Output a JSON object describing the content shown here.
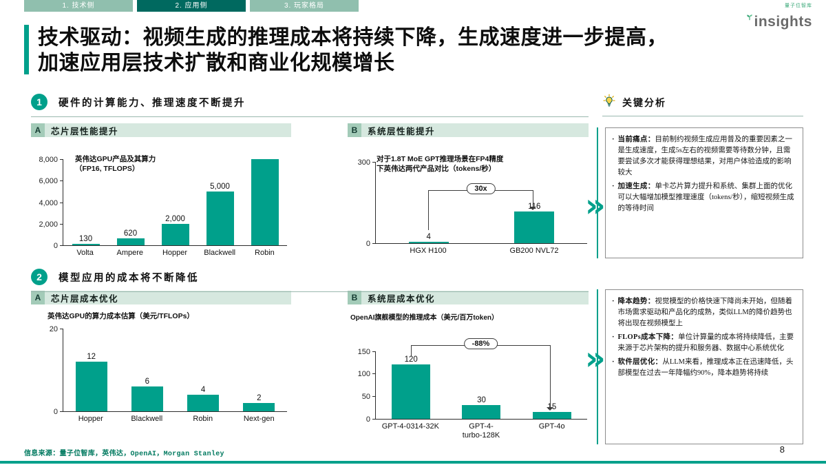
{
  "colors": {
    "accent": "#00a08b",
    "tab_active": "#00695f",
    "tab_inactive": "#90bfae",
    "panel_strip": "#d6e8df"
  },
  "icons": {
    "chevron": "»",
    "bullet": "·"
  },
  "nav": {
    "active_index": 1,
    "tabs": [
      {
        "label": "1. 技术侧"
      },
      {
        "label": "2. 应用侧"
      },
      {
        "label": "3. 玩家格局"
      }
    ]
  },
  "logo": {
    "sub": "量子位智库",
    "brand": "insights"
  },
  "title": {
    "line1": "技术驱动：视频生成的推理成本将持续下降，生成速度进一步提高，",
    "line2": "加速应用层技术扩散和商业化规模增长"
  },
  "sections": [
    {
      "num": "1",
      "title": "硬件的计算能力、推理速度不断提升"
    },
    {
      "num": "2",
      "title": "模型应用的成本将不断降低"
    }
  ],
  "panels": {
    "s1a": {
      "tag": "A",
      "title": "芯片层性能提升"
    },
    "s1b": {
      "tag": "B",
      "title": "系统层性能提升"
    },
    "s2a": {
      "tag": "A",
      "title": "芯片层成本优化"
    },
    "s2b": {
      "tag": "B",
      "title": "系统层成本优化"
    }
  },
  "analysis": {
    "header": "关键分析",
    "box1": [
      {
        "lead": "当前痛点：",
        "text": "目前制约视频生成应用普及的重要因素之一是生成速度，生成5s左右的视频需要等待数分钟，且需要尝试多次才能获得理想结果，对用户体验造成的影响较大"
      },
      {
        "lead": "加速生成：",
        "text": "单卡芯片算力提升和系统、集群上面的优化可以大幅增加模型推理速度（tokens/秒），缩短视频生成的等待时间"
      }
    ],
    "box2": [
      {
        "lead": "降本趋势：",
        "text": "视觉模型的价格快速下降尚未开始，但随着市场需求驱动和产品化的成熟，类似LLM的降价趋势也将出现在视频模型上"
      },
      {
        "lead": "FLOPs成本下降：",
        "text": "单位计算量的成本将持续降低，主要来源于芯片架构的提升和服务器、数据中心系统优化"
      },
      {
        "lead": "软件层优化：",
        "text": "从LLM来看，推理成本正在迅速降低，头部模型在过去一年降幅约90%，降本趋势将持续"
      }
    ]
  },
  "footer": {
    "source": "信息来源：量子位智库，英伟达，OpenAI，Morgan Stanley",
    "page": "8"
  },
  "chart_data": [
    {
      "id": "s1a",
      "type": "bar",
      "title": "英伟达GPU产品及其算力\n（FP16, TFLOPS）",
      "categories": [
        "Volta",
        "Ampere",
        "Hopper",
        "Blackwell",
        "Robin"
      ],
      "values": [
        130,
        620,
        2000,
        5000,
        8000
      ],
      "value_labels": [
        "130",
        "620",
        "2,000",
        "5,000",
        ""
      ],
      "ylim": [
        0,
        8000
      ],
      "yticks": [
        {
          "v": 0,
          "label": "0"
        },
        {
          "v": 2000,
          "label": "2,000"
        },
        {
          "v": 4000,
          "label": "4,000"
        },
        {
          "v": 6000,
          "label": "6,000"
        },
        {
          "v": 8000,
          "label": "8,000"
        }
      ],
      "grid": false,
      "legend": "none"
    },
    {
      "id": "s1b",
      "type": "bar",
      "title": "对于1.8T MoE GPT推理场景在FP4精度\n下英伟达两代产品对比（tokens/秒）",
      "categories": [
        "HGX H100",
        "GB200 NVL72"
      ],
      "values": [
        4,
        116
      ],
      "value_labels": [
        "4",
        "116"
      ],
      "ylim": [
        0,
        300
      ],
      "yticks": [
        {
          "v": 0,
          "label": "0"
        },
        {
          "v": 300,
          "label": "300"
        }
      ],
      "annotation": "30x",
      "grid": false,
      "legend": "none"
    },
    {
      "id": "s2a",
      "type": "bar",
      "title": "英伟达GPU的算力成本估算（美元/TFLOPs）",
      "categories": [
        "Hopper",
        "Blackwell",
        "Robin",
        "Next-gen"
      ],
      "values": [
        12,
        6,
        4,
        2
      ],
      "value_labels": [
        "12",
        "6",
        "4",
        "2"
      ],
      "ylim": [
        0,
        20
      ],
      "yticks": [
        {
          "v": 0,
          "label": "0"
        },
        {
          "v": 20,
          "label": "20"
        }
      ],
      "grid": false,
      "legend": "none"
    },
    {
      "id": "s2b",
      "type": "bar",
      "title": "OpenAI旗舰模型的推理成本（美元/百万token）",
      "categories": [
        "GPT-4-0314-32K",
        "GPT-4-\nturbo-128K",
        "GPT-4o"
      ],
      "values": [
        120,
        30,
        15
      ],
      "value_labels": [
        "120",
        "30",
        "15"
      ],
      "ylim": [
        0,
        150
      ],
      "yticks": [
        {
          "v": 0,
          "label": "0"
        },
        {
          "v": 50,
          "label": "50"
        },
        {
          "v": 100,
          "label": "100"
        },
        {
          "v": 150,
          "label": "150"
        }
      ],
      "annotation": "-88%",
      "grid": false,
      "legend": "none"
    }
  ]
}
